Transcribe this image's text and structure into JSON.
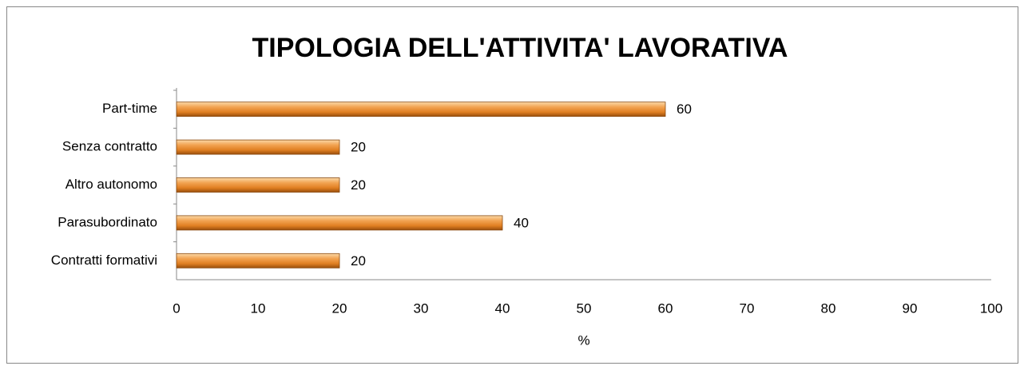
{
  "chart_data": {
    "type": "barh",
    "title": "TIPOLOGIA DELL'ATTIVITA' LAVORATIVA",
    "categories": [
      "Part-time",
      "Senza contratto",
      "Altro autonomo",
      "Parasubordinato",
      "Contratti formativi"
    ],
    "values": [
      60,
      20,
      20,
      40,
      20
    ],
    "color": "#e8872a",
    "xlabel": "%",
    "xlim": [
      0,
      100
    ],
    "xticks": [
      0,
      10,
      20,
      30,
      40,
      50,
      60,
      70,
      80,
      90,
      100
    ],
    "grid": false
  }
}
